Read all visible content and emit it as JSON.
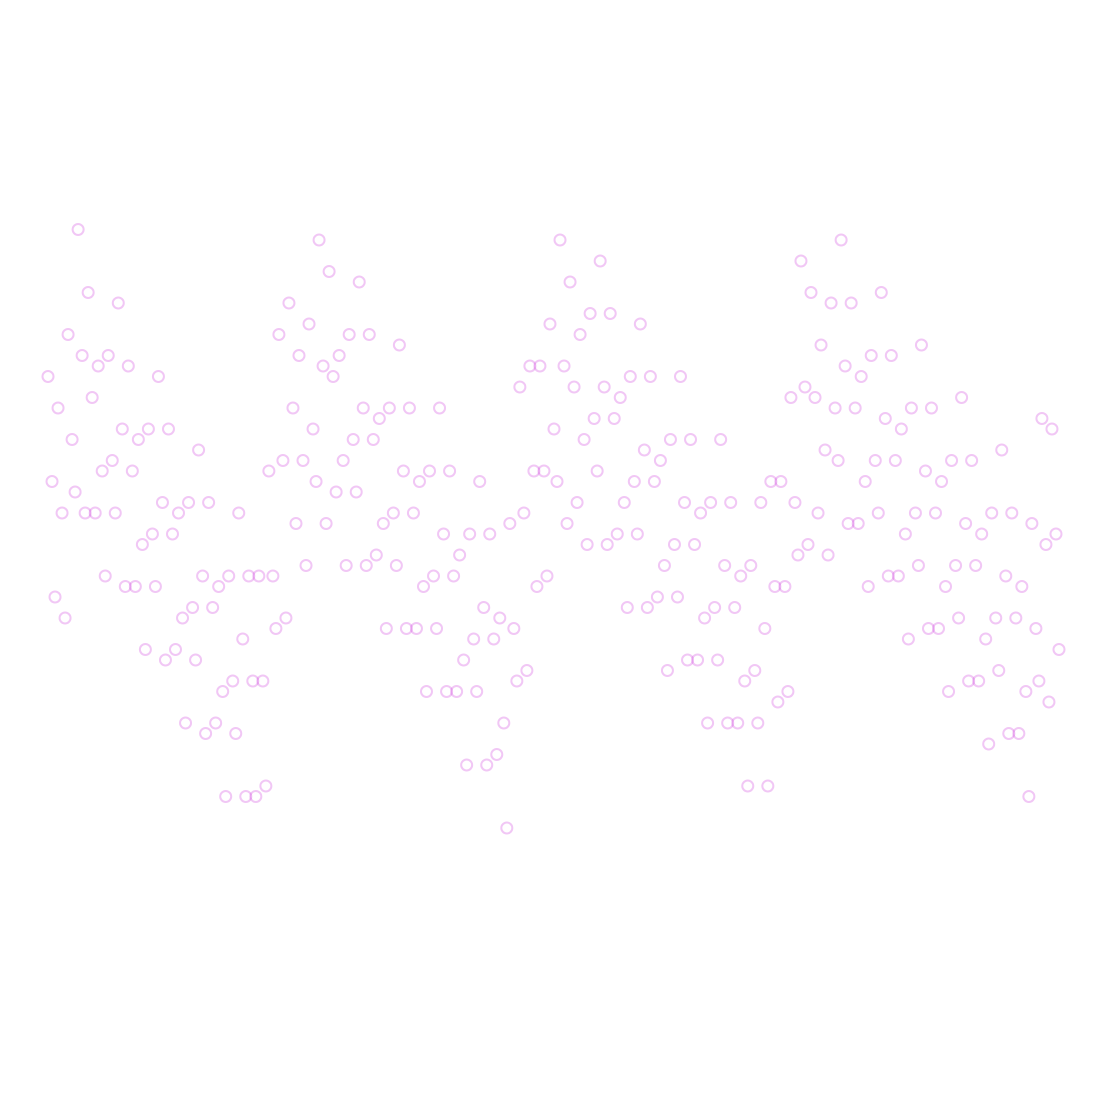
{
  "chart_data": {
    "type": "scatter",
    "color": "#c81ed6",
    "alpha": 0.25,
    "xlim": [
      0,
      101
    ],
    "ylim": [
      0,
      100
    ],
    "x": [
      0,
      0.4,
      0.7,
      1,
      1.4,
      1.7,
      2,
      2.4,
      2.7,
      3,
      3.4,
      3.7,
      4,
      4.4,
      4.7,
      5,
      5.4,
      5.7,
      6,
      6.4,
      6.7,
      7,
      7.4,
      7.7,
      8,
      8.4,
      8.7,
      9,
      9.4,
      9.7,
      10,
      10.4,
      10.7,
      11,
      11.4,
      11.7,
      12,
      12.4,
      12.7,
      13,
      13.4,
      13.7,
      14,
      14.4,
      14.7,
      15,
      15.4,
      15.7,
      16,
      16.4,
      16.7,
      17,
      17.4,
      17.7,
      18,
      18.4,
      18.7,
      19,
      19.4,
      19.7,
      20,
      20.4,
      20.7,
      21,
      21.4,
      21.7,
      22,
      22.4,
      22.7,
      23,
      23.4,
      23.7,
      24,
      24.4,
      24.7,
      25,
      25.4,
      25.7,
      26,
      26.4,
      26.7,
      27,
      27.4,
      27.7,
      28,
      28.4,
      28.7,
      29,
      29.4,
      29.7,
      30,
      30.4,
      30.7,
      31,
      31.4,
      31.7,
      32,
      32.4,
      32.7,
      33,
      33.4,
      33.7,
      34,
      34.4,
      34.7,
      35,
      35.4,
      35.7,
      36,
      36.4,
      36.7,
      37,
      37.4,
      37.7,
      38,
      38.4,
      38.7,
      39,
      39.4,
      39.7,
      40,
      40.4,
      40.7,
      41,
      41.4,
      41.7,
      42,
      42.4,
      42.7,
      43,
      43.4,
      43.7,
      44,
      44.4,
      44.7,
      45,
      45.4,
      45.7,
      46,
      46.4,
      46.7,
      47,
      47.4,
      47.7,
      48,
      48.4,
      48.7,
      49,
      49.4,
      49.7,
      50,
      50.4,
      50.7,
      51,
      51.4,
      51.7,
      52,
      52.4,
      52.7,
      53,
      53.4,
      53.7,
      54,
      54.4,
      54.7,
      55,
      55.4,
      55.7,
      56,
      56.4,
      56.7,
      57,
      57.4,
      57.7,
      58,
      58.4,
      58.7,
      59,
      59.4,
      59.7,
      60,
      60.4,
      60.7,
      61,
      61.4,
      61.7,
      62,
      62.4,
      62.7,
      63,
      63.4,
      63.7,
      64,
      64.4,
      64.7,
      65,
      65.4,
      65.7,
      66,
      66.4,
      66.7,
      67,
      67.4,
      67.7,
      68,
      68.4,
      68.7,
      69,
      69.4,
      69.7,
      70,
      70.4,
      70.7,
      71,
      71.4,
      71.7,
      72,
      72.4,
      72.7,
      73,
      73.4,
      73.7,
      74,
      74.4,
      74.7,
      75,
      75.4,
      75.7,
      76,
      76.4,
      76.7,
      77,
      77.4,
      77.7,
      78,
      78.4,
      78.7,
      79,
      79.4,
      79.7,
      80,
      80.4,
      80.7,
      81,
      81.4,
      81.7,
      82,
      82.4,
      82.7,
      83,
      83.4,
      83.7,
      84,
      84.4,
      84.7,
      85,
      85.4,
      85.7,
      86,
      86.4,
      86.7,
      87,
      87.4,
      87.7,
      88,
      88.4,
      88.7,
      89,
      89.4,
      89.7,
      90,
      90.4,
      90.7,
      91,
      91.4,
      91.7,
      92,
      92.4,
      92.7,
      93,
      93.4,
      93.7,
      94,
      94.4,
      94.7,
      95,
      95.4,
      95.7,
      96,
      96.4,
      96.7,
      97,
      97.4,
      97.7,
      98,
      98.4,
      98.7,
      99,
      99.4,
      99.7,
      100,
      100.4,
      100.7
    ],
    "values": [
      67,
      57,
      46,
      64,
      54,
      44,
      71,
      61,
      56,
      81,
      69,
      54,
      75,
      65,
      54,
      68,
      58,
      48,
      69,
      59,
      54,
      74,
      62,
      47,
      68,
      58,
      47,
      61,
      51,
      41,
      62,
      52,
      47,
      67,
      55,
      40,
      62,
      52,
      41,
      54,
      44,
      34,
      55,
      45,
      40,
      60,
      48,
      33,
      55,
      45,
      34,
      47,
      37,
      27,
      48,
      38,
      33,
      54,
      42,
      27,
      48,
      38,
      27,
      48,
      38,
      28,
      58,
      48,
      43,
      71,
      59,
      44,
      74,
      64,
      53,
      69,
      59,
      49,
      72,
      62,
      57,
      80,
      68,
      53,
      77,
      67,
      56,
      69,
      59,
      49,
      71,
      61,
      56,
      76,
      64,
      49,
      71,
      61,
      50,
      63,
      53,
      43,
      64,
      54,
      49,
      70,
      58,
      43,
      64,
      54,
      43,
      57,
      47,
      37,
      58,
      48,
      43,
      64,
      52,
      37,
      58,
      48,
      37,
      50,
      40,
      30,
      52,
      42,
      37,
      57,
      45,
      30,
      52,
      42,
      31,
      44,
      34,
      24,
      53,
      43,
      38,
      66,
      54,
      39,
      68,
      58,
      47,
      68,
      58,
      48,
      72,
      62,
      57,
      80,
      68,
      53,
      76,
      66,
      55,
      71,
      61,
      51,
      73,
      63,
      58,
      78,
      66,
      51,
      73,
      63,
      52,
      65,
      55,
      45,
      67,
      57,
      52,
      72,
      60,
      45,
      67,
      57,
      46,
      59,
      49,
      39,
      61,
      51,
      46,
      67,
      55,
      40,
      61,
      51,
      40,
      54,
      44,
      34,
      55,
      45,
      40,
      61,
      49,
      34,
      55,
      45,
      34,
      48,
      38,
      28,
      49,
      39,
      34,
      55,
      43,
      28,
      57,
      47,
      36,
      57,
      47,
      37,
      65,
      55,
      50,
      78,
      66,
      51,
      75,
      65,
      54,
      70,
      60,
      50,
      74,
      64,
      59,
      80,
      68,
      53,
      74,
      64,
      53,
      67,
      57,
      47,
      69,
      59,
      54,
      75,
      63,
      48,
      69,
      59,
      48,
      62,
      52,
      42,
      64,
      54,
      49,
      70,
      58,
      43,
      64,
      54,
      43,
      57,
      47,
      37,
      59,
      49,
      44,
      65,
      53,
      38,
      59,
      49,
      38,
      52,
      42,
      32,
      54,
      44,
      39,
      60,
      48,
      33,
      54,
      44,
      33,
      47,
      37,
      27,
      53,
      43,
      38,
      63,
      51,
      36,
      62,
      52,
      41
    ]
  }
}
